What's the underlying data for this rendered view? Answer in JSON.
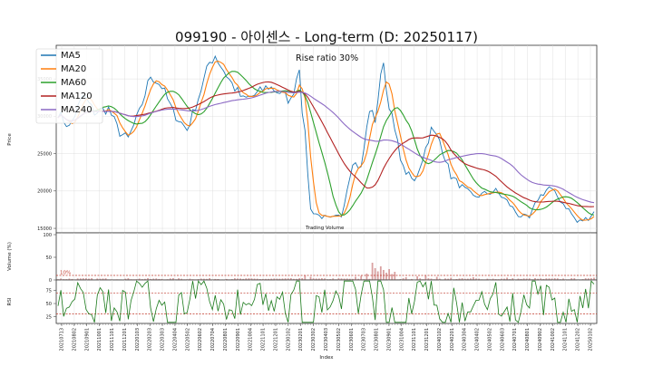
{
  "chart_data": {
    "title": "099190 - 아이센스 - Long-term (D: 20250117)",
    "xlabel": "Index",
    "date_labels": [
      "20210713",
      "20210802",
      "20210901",
      "20211001",
      "20211101",
      "20211201",
      "20220103",
      "20220203",
      "20220303",
      "20220404",
      "20220502",
      "20220602",
      "20220704",
      "20220801",
      "20220901",
      "20221004",
      "20221101",
      "20221201",
      "20230102",
      "20230201",
      "20230302",
      "20230403",
      "20230502",
      "20230601",
      "20230703",
      "20230801",
      "20230901",
      "20231004",
      "20231101",
      "20231201",
      "20240102",
      "20240201",
      "20240304",
      "20240402",
      "20240502",
      "20240603",
      "20240701",
      "20240801",
      "20240902",
      "20241002",
      "20241101",
      "20241202",
      "20250102"
    ],
    "price_panel": {
      "type": "line",
      "ylabel": "Price",
      "yticks": [
        15000,
        20000,
        25000,
        30000,
        35000
      ],
      "ylim": [
        14400,
        39500
      ],
      "annotation": "Rise ratio 30%",
      "volume_caption": "Trading Volume",
      "legend": [
        "MA5",
        "MA20",
        "MA60",
        "MA120",
        "MA240"
      ],
      "price_anchors": [
        [
          0,
          30500
        ],
        [
          4,
          28500
        ],
        [
          9,
          32800
        ],
        [
          13,
          30500
        ],
        [
          18,
          31000
        ],
        [
          22,
          27800
        ],
        [
          25,
          27000
        ],
        [
          29,
          30500
        ],
        [
          33,
          35500
        ],
        [
          37,
          34000
        ],
        [
          41,
          30500
        ],
        [
          46,
          28200
        ],
        [
          50,
          32500
        ],
        [
          54,
          37200
        ],
        [
          56,
          38200
        ],
        [
          58,
          36800
        ],
        [
          62,
          34300
        ],
        [
          66,
          32200
        ],
        [
          70,
          32800
        ],
        [
          75,
          34000
        ],
        [
          79,
          33200
        ],
        [
          83,
          32000
        ],
        [
          86,
          36800
        ],
        [
          87,
          31000
        ],
        [
          88,
          27500
        ],
        [
          90,
          17500
        ],
        [
          93,
          16700
        ],
        [
          97,
          16200
        ],
        [
          101,
          16700
        ],
        [
          105,
          24000
        ],
        [
          108,
          23000
        ],
        [
          111,
          31000
        ],
        [
          113,
          29500
        ],
        [
          116,
          37800
        ],
        [
          117,
          33500
        ],
        [
          120,
          28000
        ],
        [
          123,
          23000
        ],
        [
          127,
          21200
        ],
        [
          130,
          24500
        ],
        [
          133,
          28200
        ],
        [
          136,
          26800
        ],
        [
          140,
          22000
        ],
        [
          144,
          20500
        ],
        [
          148,
          19200
        ],
        [
          152,
          19600
        ],
        [
          156,
          20000
        ],
        [
          160,
          18600
        ],
        [
          164,
          16800
        ],
        [
          168,
          16300
        ],
        [
          171,
          19000
        ],
        [
          175,
          20500
        ],
        [
          178,
          19200
        ],
        [
          182,
          17500
        ],
        [
          185,
          15800
        ],
        [
          189,
          16400
        ],
        [
          191,
          17200
        ]
      ],
      "series": [
        {
          "name": "MA5",
          "color": "#1f77b4",
          "window": 1
        },
        {
          "name": "MA20",
          "color": "#ff7f0e",
          "window": 4
        },
        {
          "name": "MA60",
          "color": "#2ca02c",
          "window": 12
        },
        {
          "name": "MA120",
          "color": "#b22222",
          "window": 24
        },
        {
          "name": "MA240",
          "color": "#8c6ac4",
          "window": 48
        }
      ]
    },
    "volume_panel": {
      "type": "bar",
      "ylabel": "Volume (%)",
      "yticks": [
        0,
        50,
        100
      ],
      "ylim": [
        0,
        100
      ],
      "threshold": 10,
      "threshold_label": "10%",
      "spikes": [
        [
          112,
          38
        ],
        [
          113,
          26
        ],
        [
          114,
          19
        ],
        [
          115,
          30
        ],
        [
          116,
          22
        ],
        [
          117,
          16
        ],
        [
          118,
          24
        ],
        [
          119,
          13
        ],
        [
          120,
          18
        ],
        [
          106,
          7
        ],
        [
          108,
          9
        ],
        [
          110,
          14
        ],
        [
          124,
          6
        ],
        [
          128,
          8
        ],
        [
          88,
          10
        ],
        [
          90,
          7
        ],
        [
          131,
          9
        ],
        [
          135,
          7
        ],
        [
          140,
          5
        ],
        [
          148,
          6
        ],
        [
          160,
          5
        ],
        [
          170,
          4
        ],
        [
          191,
          5
        ]
      ]
    },
    "rsi_panel": {
      "type": "line",
      "ylabel": "RSI",
      "yticks": [
        25,
        50,
        75
      ],
      "ylim": [
        12,
        95
      ],
      "upper": 70,
      "lower": 30,
      "series_color": "#1a7a1a",
      "last_value": 87
    }
  }
}
